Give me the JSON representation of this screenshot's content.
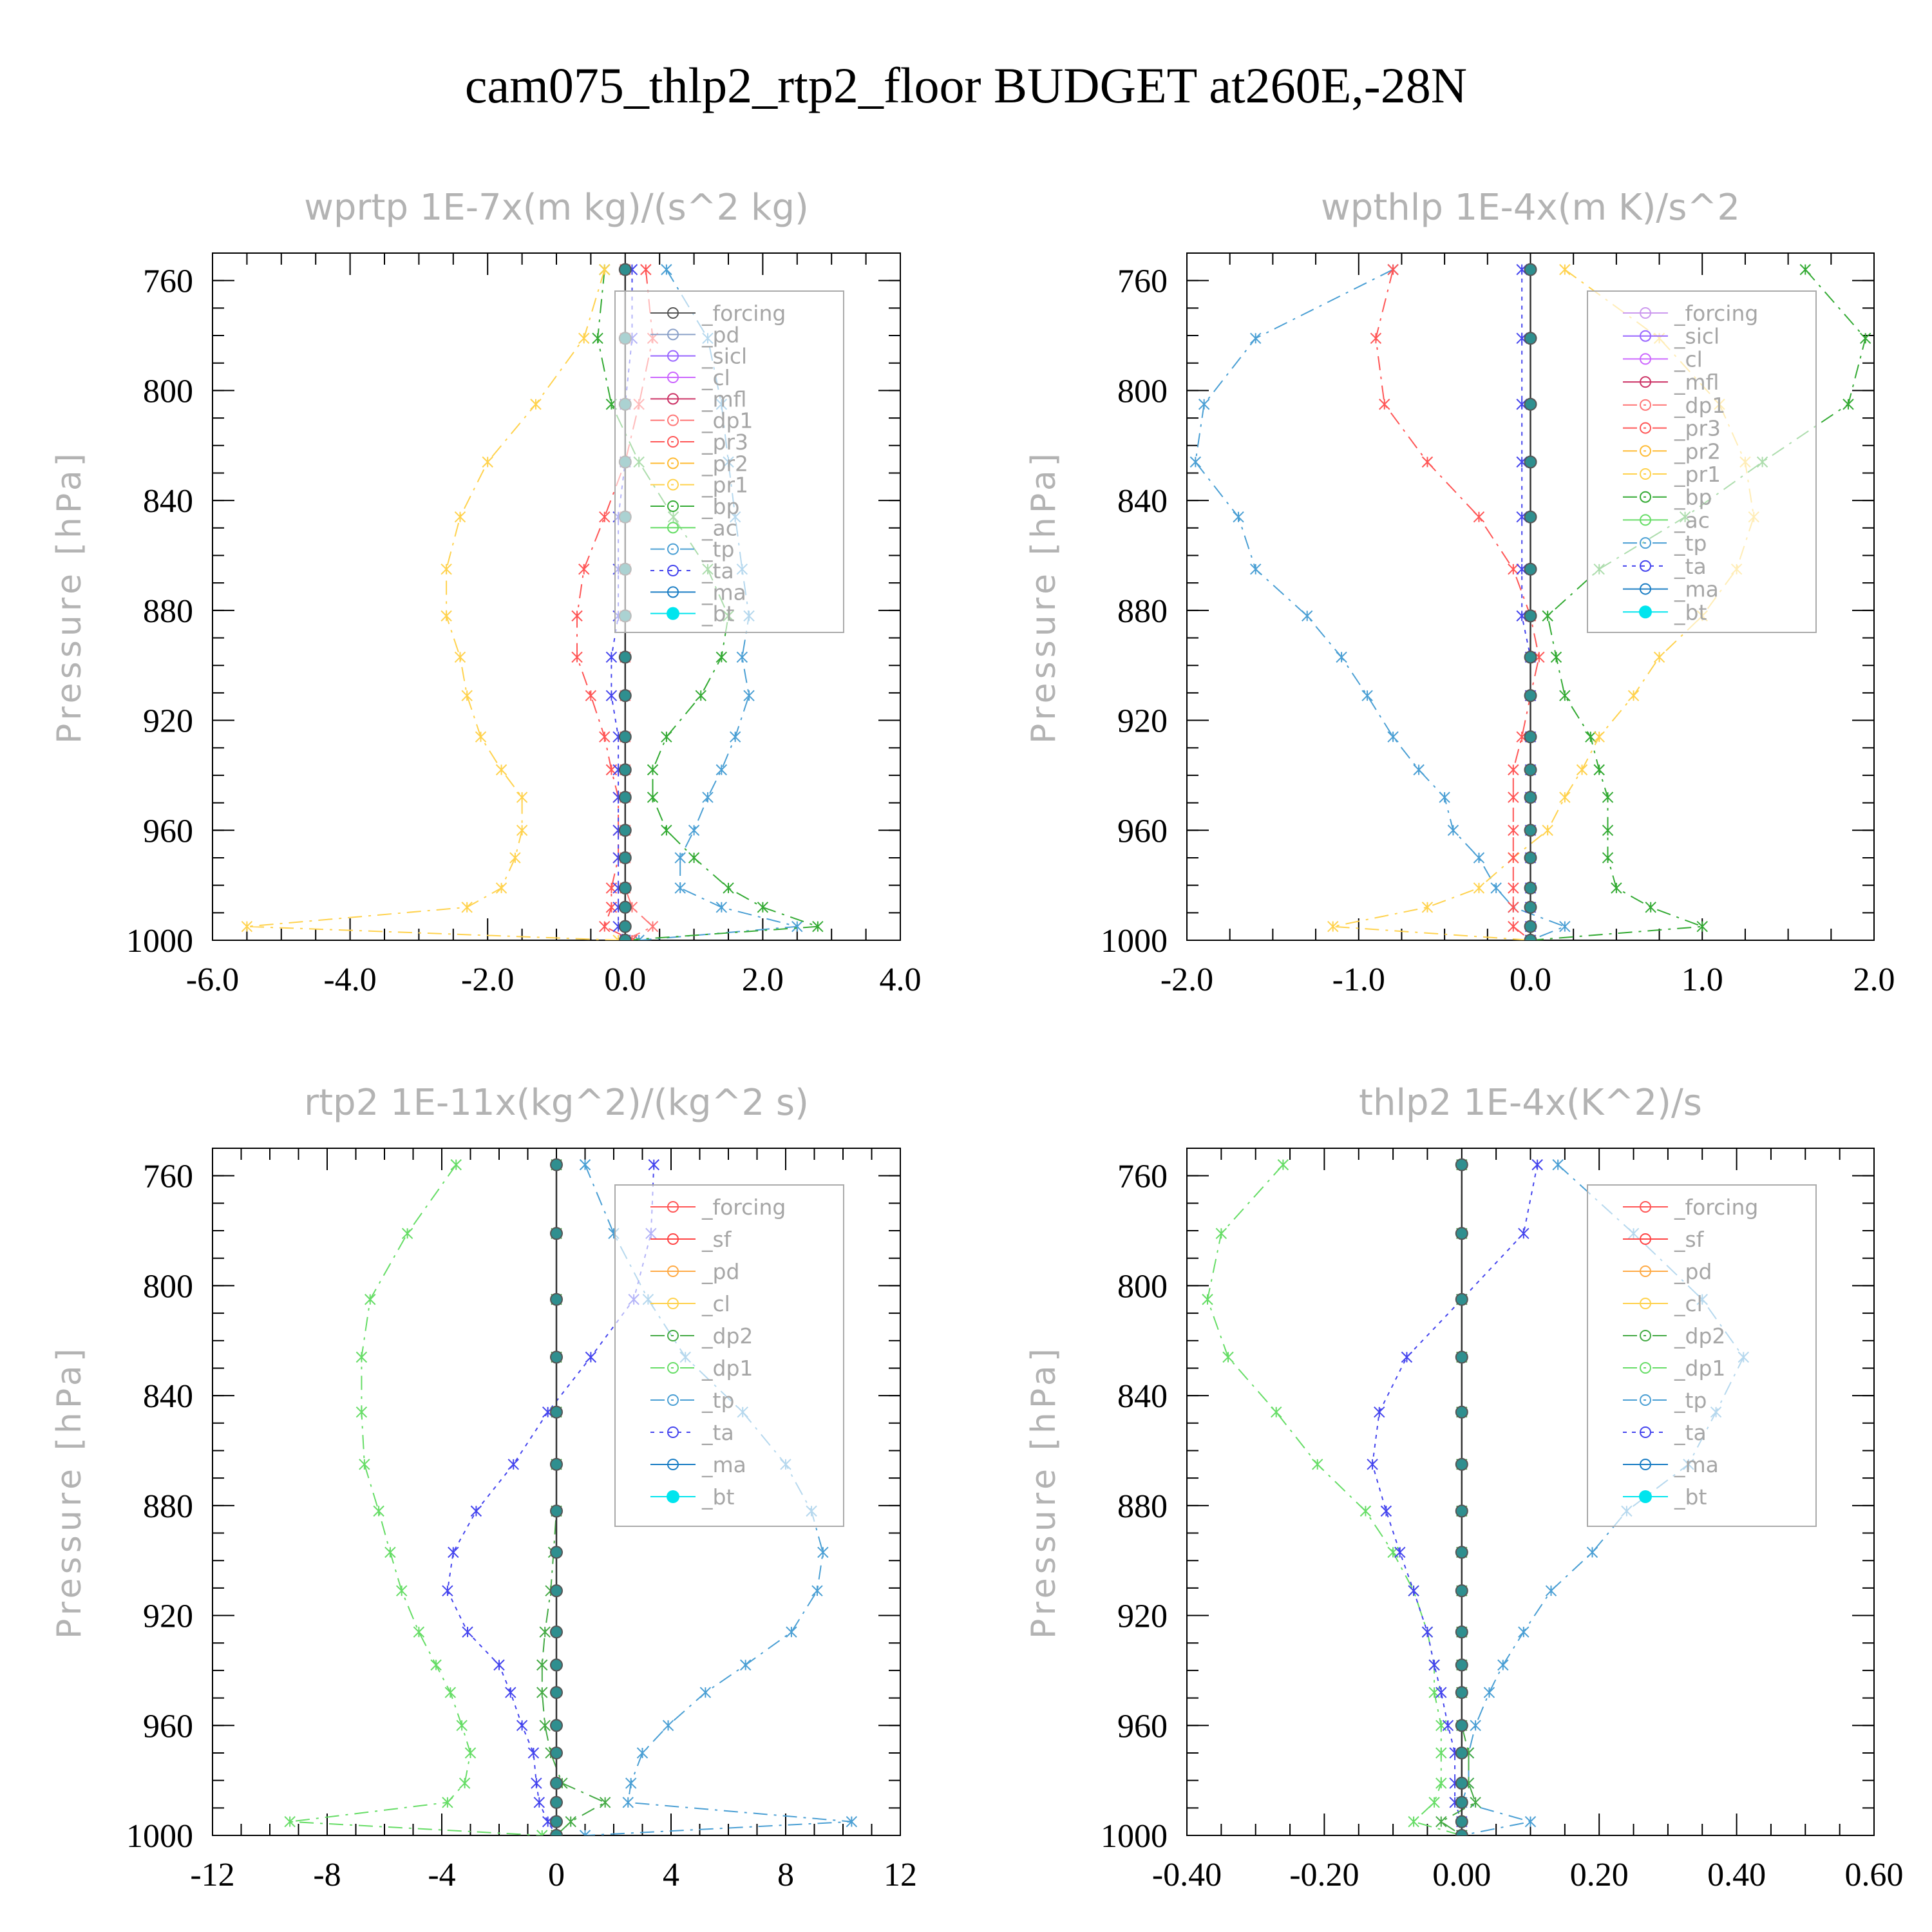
{
  "page": {
    "title": "cam075_thlp2_rtp2_floor  BUDGET at260E,-28N"
  },
  "chart_data": [
    {
      "type": "line",
      "title": "wprtp  1E-7x(m kg)/(s^2 kg)",
      "ylabel": "Pressure [hPa]",
      "xlabel": "",
      "xlim": [
        -6,
        4
      ],
      "ylim": [
        1000,
        750
      ],
      "xticks": [
        "-6.0",
        "-4.0",
        "-2.0",
        "0.0",
        "2.0",
        "4.0"
      ],
      "yticks": [
        "760",
        "800",
        "840",
        "880",
        "920",
        "960",
        "1000"
      ],
      "legend": [
        "_forcing",
        "_pd",
        "_sicl",
        "_cl",
        "_mfl",
        "_dp1",
        "_pr3",
        "_pr2",
        "_pr1",
        "_bp",
        "_ac",
        "_tp",
        "_ta",
        "_ma",
        "_bt"
      ],
      "series_colors": [
        "#555555",
        "#8aa0c8",
        "#9966ff",
        "#cc66ff",
        "#cc3366",
        "#ff7777",
        "#ff5555",
        "#ffbb33",
        "#ffd24d",
        "#33aa33",
        "#66dd66",
        "#4a9fd4",
        "#4444ee",
        "#1a7dc4",
        "#00e5ee"
      ],
      "y": [
        756,
        781,
        805,
        826,
        846,
        865,
        882,
        897,
        911,
        926,
        938,
        948,
        960,
        970,
        981,
        988,
        995,
        1000
      ],
      "series": [
        {
          "name": "_tp",
          "values": [
            0.6,
            1.2,
            1.4,
            1.5,
            1.6,
            1.7,
            1.8,
            1.7,
            1.8,
            1.6,
            1.4,
            1.2,
            1.0,
            0.8,
            0.8,
            1.4,
            2.5,
            0.2
          ]
        },
        {
          "name": "_bp",
          "values": [
            -0.3,
            -0.4,
            -0.2,
            0.2,
            0.7,
            1.2,
            1.5,
            1.4,
            1.1,
            0.6,
            0.4,
            0.4,
            0.6,
            1.0,
            1.5,
            2.0,
            2.8,
            0.0
          ]
        },
        {
          "name": "_pr1",
          "values": [
            -0.3,
            -0.6,
            -1.3,
            -2.0,
            -2.4,
            -2.6,
            -2.6,
            -2.4,
            -2.3,
            -2.1,
            -1.8,
            -1.5,
            -1.5,
            -1.6,
            -1.8,
            -2.3,
            -5.5,
            -0.1
          ]
        },
        {
          "name": "_pr3",
          "values": [
            0.3,
            0.4,
            0.2,
            0.0,
            -0.3,
            -0.6,
            -0.7,
            -0.7,
            -0.5,
            -0.3,
            -0.2,
            -0.1,
            -0.1,
            -0.1,
            -0.2,
            -0.2,
            -0.3,
            0.1
          ]
        },
        {
          "name": "_dp1",
          "values": [
            0.0,
            0.0,
            0.0,
            0.0,
            0.0,
            0.0,
            0.0,
            0.0,
            0.0,
            0.0,
            0.0,
            0.0,
            0.0,
            0.0,
            0.0,
            0.1,
            0.4,
            0.0
          ]
        },
        {
          "name": "_ta",
          "values": [
            0.1,
            0.1,
            0.0,
            0.0,
            -0.1,
            -0.1,
            -0.1,
            -0.2,
            -0.2,
            -0.1,
            -0.1,
            -0.1,
            -0.1,
            -0.1,
            -0.1,
            -0.1,
            -0.1,
            0.0
          ]
        },
        {
          "name": "_bt",
          "values": [
            0,
            0,
            0,
            0,
            0,
            0,
            0,
            0,
            0,
            0,
            0,
            0,
            0,
            0,
            0,
            0,
            0,
            0
          ]
        }
      ]
    },
    {
      "type": "line",
      "title": "wpthlp  1E-4x(m K)/s^2",
      "ylabel": "Pressure [hPa]",
      "xlabel": "",
      "xlim": [
        -2,
        2
      ],
      "ylim": [
        1000,
        750
      ],
      "xticks": [
        "-2.0",
        "-1.0",
        "0.0",
        "1.0",
        "2.0"
      ],
      "yticks": [
        "760",
        "800",
        "840",
        "880",
        "920",
        "960",
        "1000"
      ],
      "legend": [
        "_forcing",
        "_sicl",
        "_cl",
        "_mfl",
        "_dp1",
        "_pr3",
        "_pr2",
        "_pr1",
        "_bp",
        "_ac",
        "_tp",
        "_ta",
        "_ma",
        "_bt"
      ],
      "series_colors": [
        "#cc99ee",
        "#9966ff",
        "#cc66ff",
        "#cc3366",
        "#ff7777",
        "#ff5555",
        "#ffbb33",
        "#ffd24d",
        "#33aa33",
        "#66dd66",
        "#4a9fd4",
        "#4444ee",
        "#1a7dc4",
        "#00e5ee"
      ],
      "y": [
        756,
        781,
        805,
        826,
        846,
        865,
        882,
        897,
        911,
        926,
        938,
        948,
        960,
        970,
        981,
        988,
        995,
        1000
      ],
      "series": [
        {
          "name": "_tp",
          "values": [
            -0.8,
            -1.6,
            -1.9,
            -1.95,
            -1.7,
            -1.6,
            -1.3,
            -1.1,
            -0.95,
            -0.8,
            -0.65,
            -0.5,
            -0.45,
            -0.3,
            -0.2,
            -0.1,
            0.2,
            0.0
          ]
        },
        {
          "name": "_bp",
          "values": [
            1.6,
            1.95,
            1.85,
            1.35,
            0.9,
            0.4,
            0.1,
            0.15,
            0.2,
            0.35,
            0.4,
            0.45,
            0.45,
            0.45,
            0.5,
            0.7,
            1.0,
            0.0
          ]
        },
        {
          "name": "_pr1",
          "values": [
            0.2,
            0.75,
            1.1,
            1.25,
            1.3,
            1.2,
            1.0,
            0.75,
            0.6,
            0.4,
            0.3,
            0.2,
            0.1,
            -0.1,
            -0.3,
            -0.6,
            -1.15,
            0.0
          ]
        },
        {
          "name": "_pr3",
          "values": [
            -0.8,
            -0.9,
            -0.85,
            -0.6,
            -0.3,
            -0.1,
            0.0,
            0.05,
            0.0,
            -0.05,
            -0.1,
            -0.1,
            -0.1,
            -0.1,
            -0.1,
            -0.1,
            -0.1,
            0.0
          ]
        },
        {
          "name": "_ta",
          "values": [
            -0.05,
            -0.05,
            -0.05,
            -0.05,
            -0.05,
            -0.05,
            -0.05,
            0.0,
            0.0,
            0.0,
            0.0,
            0.0,
            0.0,
            0.0,
            0.0,
            0.0,
            0.0,
            0.0
          ]
        },
        {
          "name": "_bt",
          "values": [
            0,
            0,
            0,
            0,
            0,
            0,
            0,
            0,
            0,
            0,
            0,
            0,
            0,
            0,
            0,
            0,
            0,
            0
          ]
        }
      ]
    },
    {
      "type": "line",
      "title": "rtp2  1E-11x(kg^2)/(kg^2 s)",
      "ylabel": "Pressure [hPa]",
      "xlabel": "",
      "xlim": [
        -12,
        12
      ],
      "ylim": [
        1000,
        750
      ],
      "xticks": [
        "-12",
        "-8",
        "-4",
        "0",
        "4",
        "8",
        "12"
      ],
      "yticks": [
        "760",
        "800",
        "840",
        "880",
        "920",
        "960",
        "1000"
      ],
      "legend": [
        "_forcing",
        "_sf",
        "_pd",
        "_cl",
        "_dp2",
        "_dp1",
        "_tp",
        "_ta",
        "_ma",
        "_bt"
      ],
      "series_colors": [
        "#ff5555",
        "#ff4444",
        "#ffaa44",
        "#ffd24d",
        "#44aa44",
        "#66dd66",
        "#4a9fd4",
        "#4444ee",
        "#1a7dc4",
        "#00e5ee"
      ],
      "y": [
        756,
        781,
        805,
        826,
        846,
        865,
        882,
        897,
        911,
        926,
        938,
        948,
        960,
        970,
        981,
        988,
        995,
        1000
      ],
      "series": [
        {
          "name": "_dp1",
          "values": [
            -3.5,
            -5.2,
            -6.5,
            -6.8,
            -6.8,
            -6.7,
            -6.2,
            -5.8,
            -5.4,
            -4.8,
            -4.2,
            -3.7,
            -3.3,
            -3.0,
            -3.2,
            -3.8,
            -9.3,
            -0.5
          ]
        },
        {
          "name": "_tp",
          "values": [
            1.0,
            2.0,
            3.2,
            4.5,
            6.5,
            8.0,
            8.9,
            9.3,
            9.1,
            8.2,
            6.6,
            5.2,
            3.9,
            3.0,
            2.6,
            2.5,
            10.3,
            1.0
          ]
        },
        {
          "name": "_ta",
          "values": [
            3.4,
            3.3,
            2.7,
            1.2,
            -0.3,
            -1.5,
            -2.8,
            -3.6,
            -3.8,
            -3.1,
            -2.0,
            -1.6,
            -1.2,
            -0.8,
            -0.7,
            -0.6,
            -0.3,
            0.0
          ]
        },
        {
          "name": "_dp2",
          "values": [
            0,
            0,
            0,
            0,
            0,
            0,
            0,
            -0.1,
            -0.2,
            -0.4,
            -0.5,
            -0.5,
            -0.4,
            -0.2,
            0.2,
            1.7,
            0.5,
            0.0
          ]
        },
        {
          "name": "_bt",
          "values": [
            0,
            0,
            0,
            0,
            0,
            0,
            0,
            0,
            0,
            0,
            0,
            0,
            0,
            0,
            0,
            0,
            0,
            0
          ]
        }
      ]
    },
    {
      "type": "line",
      "title": "thlp2  1E-4x(K^2)/s",
      "ylabel": "Pressure [hPa]",
      "xlabel": "",
      "xlim": [
        -0.4,
        0.6
      ],
      "ylim": [
        1000,
        750
      ],
      "xticks": [
        "-0.40",
        "-0.20",
        "0.00",
        "0.20",
        "0.40",
        "0.60"
      ],
      "yticks": [
        "760",
        "800",
        "840",
        "880",
        "920",
        "960",
        "1000"
      ],
      "legend": [
        "_forcing",
        "_sf",
        "_pd",
        "_cl",
        "_dp2",
        "_dp1",
        "_tp",
        "_ta",
        "_ma",
        "_bt"
      ],
      "series_colors": [
        "#ff5555",
        "#ff4444",
        "#ffaa44",
        "#ffd24d",
        "#44aa44",
        "#66dd66",
        "#4a9fd4",
        "#4444ee",
        "#1a7dc4",
        "#00e5ee"
      ],
      "y": [
        756,
        781,
        805,
        826,
        846,
        865,
        882,
        897,
        911,
        926,
        938,
        948,
        960,
        970,
        981,
        988,
        995,
        1000
      ],
      "series": [
        {
          "name": "_dp1",
          "values": [
            -0.26,
            -0.35,
            -0.37,
            -0.34,
            -0.27,
            -0.21,
            -0.14,
            -0.1,
            -0.07,
            -0.05,
            -0.04,
            -0.04,
            -0.03,
            -0.03,
            -0.03,
            -0.04,
            -0.07,
            0.0
          ]
        },
        {
          "name": "_tp",
          "values": [
            0.14,
            0.25,
            0.35,
            0.41,
            0.37,
            0.33,
            0.24,
            0.19,
            0.13,
            0.09,
            0.06,
            0.04,
            0.02,
            0.01,
            0.01,
            0.0,
            0.1,
            0.0
          ]
        },
        {
          "name": "_ta",
          "values": [
            0.11,
            0.09,
            0.0,
            -0.08,
            -0.12,
            -0.13,
            -0.11,
            -0.09,
            -0.07,
            -0.05,
            -0.04,
            -0.03,
            -0.02,
            -0.01,
            -0.01,
            -0.01,
            0.0,
            0.0
          ]
        },
        {
          "name": "_dp2",
          "values": [
            0,
            0,
            0,
            0,
            0,
            0,
            0,
            0,
            0,
            0,
            0,
            0,
            0.0,
            0.01,
            0.01,
            0.02,
            -0.03,
            0.0
          ]
        },
        {
          "name": "_bt",
          "values": [
            0,
            0,
            0,
            0,
            0,
            0,
            0,
            0,
            0,
            0,
            0,
            0,
            0,
            0,
            0,
            0,
            0,
            0
          ]
        }
      ]
    }
  ]
}
